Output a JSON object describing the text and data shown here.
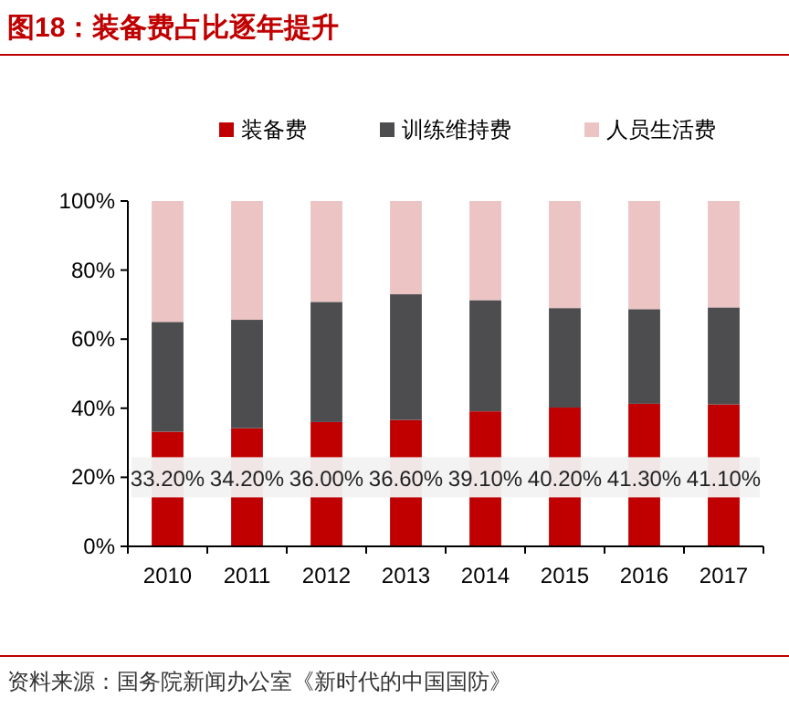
{
  "chart_data": {
    "type": "bar",
    "stacked": true,
    "title": "图18：装备费占比逐年提升",
    "categories": [
      "2010",
      "2011",
      "2012",
      "2013",
      "2014",
      "2015",
      "2016",
      "2017"
    ],
    "series": [
      {
        "name": "装备费",
        "color": "#c00000",
        "values": [
          33.2,
          34.2,
          36.0,
          36.6,
          39.1,
          40.2,
          41.3,
          41.1
        ],
        "value_labels": [
          "33.20%",
          "34.20%",
          "36.00%",
          "36.60%",
          "39.10%",
          "40.20%",
          "41.30%",
          "41.10%"
        ]
      },
      {
        "name": "训练维持费",
        "color": "#4d4d4f",
        "values": [
          31.8,
          31.4,
          34.8,
          36.4,
          32.2,
          28.8,
          27.4,
          28.1
        ]
      },
      {
        "name": "人员生活费",
        "color": "#ecc4c4",
        "values": [
          35.0,
          34.4,
          29.2,
          27.0,
          28.7,
          31.0,
          31.3,
          30.8
        ]
      }
    ],
    "ylim": [
      0,
      100
    ],
    "yticks": [
      {
        "value": 0,
        "label": "0%"
      },
      {
        "value": 20,
        "label": "20%"
      },
      {
        "value": 40,
        "label": "40%"
      },
      {
        "value": 60,
        "label": "60%"
      },
      {
        "value": 80,
        "label": "80%"
      },
      {
        "value": 100,
        "label": "100%"
      }
    ],
    "legend": "top",
    "annotations": [
      "资料来源：国务院新闻办公室《新时代的中国国防》"
    ]
  }
}
